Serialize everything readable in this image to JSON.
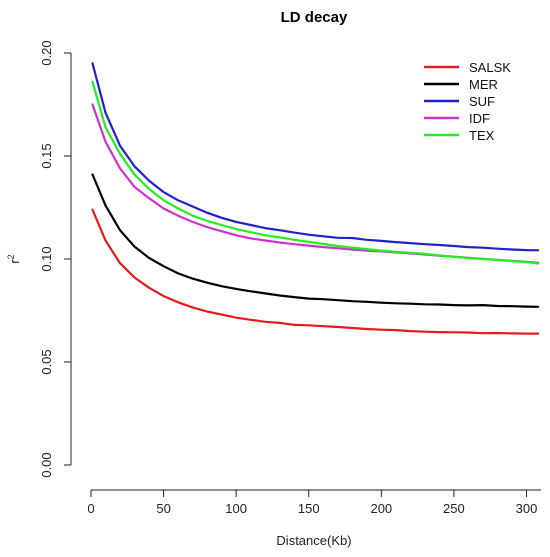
{
  "chart_data": {
    "type": "line",
    "title": "LD decay",
    "xlabel": "Distance(Kb)",
    "ylabel": "r",
    "ylabel_superscript": "2",
    "xlim": [
      0,
      310
    ],
    "ylim": [
      0,
      0.2
    ],
    "x_ticks": [
      "0",
      "50",
      "100",
      "150",
      "200",
      "250",
      "300"
    ],
    "y_ticks": [
      "0.00",
      "0.05",
      "0.10",
      "0.15",
      "0.20"
    ],
    "grid": false,
    "legend_position": "top-right",
    "x": [
      1,
      10,
      20,
      30,
      40,
      50,
      60,
      70,
      80,
      90,
      100,
      110,
      120,
      130,
      140,
      150,
      160,
      170,
      180,
      190,
      200,
      210,
      220,
      230,
      240,
      250,
      260,
      270,
      280,
      290,
      300,
      308
    ],
    "series": [
      {
        "name": "SALSK",
        "color": "#e41a1c",
        "values": [
          0.124,
          0.109,
          0.098,
          0.091,
          0.086,
          0.082,
          0.079,
          0.0765,
          0.0745,
          0.073,
          0.0715,
          0.0705,
          0.0695,
          0.069,
          0.068,
          0.0678,
          0.0674,
          0.067,
          0.0665,
          0.066,
          0.0657,
          0.0655,
          0.065,
          0.0647,
          0.0645,
          0.0644,
          0.0643,
          0.064,
          0.0641,
          0.0639,
          0.0638,
          0.0638
        ]
      },
      {
        "name": "MER",
        "color": "#000000",
        "values": [
          0.141,
          0.126,
          0.114,
          0.106,
          0.1005,
          0.0965,
          0.093,
          0.0905,
          0.0885,
          0.0868,
          0.0855,
          0.0843,
          0.0833,
          0.0823,
          0.0815,
          0.0808,
          0.0805,
          0.08,
          0.0795,
          0.0792,
          0.0788,
          0.0785,
          0.0783,
          0.078,
          0.0779,
          0.0776,
          0.0775,
          0.0776,
          0.0772,
          0.0771,
          0.0769,
          0.0768
        ]
      },
      {
        "name": "SUF",
        "color": "#1f22c9",
        "values": [
          0.195,
          0.171,
          0.155,
          0.145,
          0.138,
          0.1325,
          0.1285,
          0.1255,
          0.1225,
          0.12,
          0.118,
          0.1165,
          0.115,
          0.114,
          0.1128,
          0.1118,
          0.111,
          0.1103,
          0.1102,
          0.1093,
          0.1088,
          0.1082,
          0.1077,
          0.1072,
          0.1068,
          0.1063,
          0.1058,
          0.1055,
          0.105,
          0.1046,
          0.1043,
          0.1042
        ]
      },
      {
        "name": "IDF",
        "color": "#cc33cc",
        "values": [
          0.175,
          0.157,
          0.144,
          0.135,
          0.1295,
          0.1245,
          0.121,
          0.118,
          0.1155,
          0.1135,
          0.1115,
          0.11,
          0.109,
          0.108,
          0.1072,
          0.1065,
          0.1058,
          0.1052,
          0.1046,
          0.1041,
          0.1037,
          0.1032,
          0.1027,
          0.1022,
          0.1016,
          0.1011,
          0.1006,
          0.1001,
          0.0996,
          0.0991,
          0.0986,
          0.0981
        ]
      },
      {
        "name": "TEX",
        "color": "#22ee22",
        "values": [
          0.186,
          0.164,
          0.151,
          0.141,
          0.134,
          0.1285,
          0.1245,
          0.121,
          0.1185,
          0.1165,
          0.1145,
          0.113,
          0.1115,
          0.1105,
          0.1093,
          0.1083,
          0.1073,
          0.1063,
          0.1055,
          0.1048,
          0.1041,
          0.1035,
          0.103,
          0.1025,
          0.1017,
          0.1011,
          0.1005,
          0.1,
          0.0995,
          0.099,
          0.0985,
          0.0978
        ]
      }
    ]
  }
}
